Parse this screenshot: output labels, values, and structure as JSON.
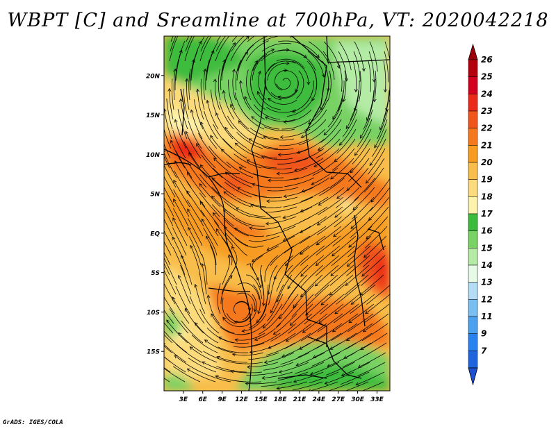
{
  "title": "WBPT [C] and Sreamline at 700hPa, VT: 2020042218",
  "credit": "GrADS: IGES/COLA",
  "map": {
    "lat_range": [
      -20,
      25
    ],
    "lon_range": [
      0,
      35
    ],
    "lat_ticks": [
      {
        "value": 20,
        "label": "20N"
      },
      {
        "value": 15,
        "label": "15N"
      },
      {
        "value": 10,
        "label": "10N"
      },
      {
        "value": 5,
        "label": "5N"
      },
      {
        "value": 0,
        "label": "EQ"
      },
      {
        "value": -5,
        "label": "5S"
      },
      {
        "value": -10,
        "label": "10S"
      },
      {
        "value": -15,
        "label": "15S"
      }
    ],
    "lon_ticks": [
      {
        "value": 3,
        "label": "3E"
      },
      {
        "value": 6,
        "label": "6E"
      },
      {
        "value": 9,
        "label": "9E"
      },
      {
        "value": 12,
        "label": "12E"
      },
      {
        "value": 15,
        "label": "15E"
      },
      {
        "value": 18,
        "label": "18E"
      },
      {
        "value": 21,
        "label": "21E"
      },
      {
        "value": 24,
        "label": "24E"
      },
      {
        "value": 27,
        "label": "27E"
      },
      {
        "value": 30,
        "label": "30E"
      },
      {
        "value": 33,
        "label": "33E"
      }
    ],
    "field_regions": [
      {
        "value": 17,
        "name": "northern-green-belt"
      },
      {
        "value": 16,
        "name": "cyclonic-low-north"
      },
      {
        "value": 19,
        "name": "sahel-pale-yellow"
      },
      {
        "value": 22,
        "name": "equatorial-orange"
      },
      {
        "value": 23,
        "name": "central-dark-orange-band"
      },
      {
        "value": 21,
        "name": "southern-orange"
      },
      {
        "value": 17,
        "name": "southern-green-zone"
      },
      {
        "value": 24,
        "name": "east-lake-maximum"
      }
    ]
  },
  "colorbar": {
    "levels": [
      {
        "label": "26",
        "color": "#b4000e"
      },
      {
        "label": "25",
        "color": "#d2001e"
      },
      {
        "label": "24",
        "color": "#eb2a19"
      },
      {
        "label": "23",
        "color": "#f0551a"
      },
      {
        "label": "22",
        "color": "#f5781c"
      },
      {
        "label": "21",
        "color": "#f79b21"
      },
      {
        "label": "20",
        "color": "#f8bd4a"
      },
      {
        "label": "19",
        "color": "#fbdb7c"
      },
      {
        "label": "18",
        "color": "#fdf3ad"
      },
      {
        "label": "17",
        "color": "#3cbc3c"
      },
      {
        "label": "16",
        "color": "#78d264"
      },
      {
        "label": "15",
        "color": "#b4eba5"
      },
      {
        "label": "14",
        "color": "#e6fae6"
      },
      {
        "label": "13",
        "color": "#b4dcf5"
      },
      {
        "label": "12",
        "color": "#78bef0"
      },
      {
        "label": "11",
        "color": "#4ba0f0"
      },
      {
        "label": "9",
        "color": "#2882f0"
      },
      {
        "label": "7",
        "color": "#1e64dc"
      }
    ],
    "below_color": "#1e50d2",
    "above_color": "#a0000a"
  }
}
